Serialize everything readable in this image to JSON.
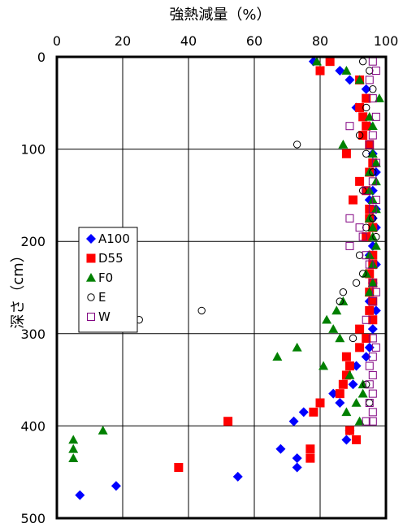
{
  "chart_data": {
    "type": "scatter",
    "title": "",
    "xlabel": "強熱減量（%）",
    "ylabel": "深さ（cm）",
    "xlim": [
      0,
      100
    ],
    "ylim": [
      0,
      500
    ],
    "y_inverted": true,
    "x_axis_position": "top",
    "grid": true,
    "legend_position": "left-middle",
    "x_ticks": [
      0,
      20,
      40,
      60,
      80,
      100
    ],
    "y_ticks": [
      0,
      100,
      200,
      300,
      400,
      500
    ],
    "series": [
      {
        "name": "A100",
        "marker": "diamond",
        "color": "#0000ff",
        "filled": true,
        "points": [
          [
            78,
            5
          ],
          [
            86,
            15
          ],
          [
            89,
            25
          ],
          [
            91,
            55
          ],
          [
            94,
            35
          ],
          [
            95,
            75
          ],
          [
            96,
            105
          ],
          [
            97,
            125
          ],
          [
            96,
            145
          ],
          [
            95,
            155
          ],
          [
            97,
            165
          ],
          [
            96,
            175
          ],
          [
            97,
            185
          ],
          [
            96,
            205
          ],
          [
            95,
            215
          ],
          [
            97,
            225
          ],
          [
            96,
            245
          ],
          [
            95,
            265
          ],
          [
            97,
            275
          ],
          [
            96,
            295
          ],
          [
            95,
            315
          ],
          [
            94,
            325
          ],
          [
            91,
            335
          ],
          [
            90,
            355
          ],
          [
            84,
            365
          ],
          [
            86,
            375
          ],
          [
            75,
            385
          ],
          [
            72,
            395
          ],
          [
            89,
            405
          ],
          [
            88,
            415
          ],
          [
            68,
            425
          ],
          [
            73,
            435
          ],
          [
            73,
            445
          ],
          [
            55,
            455
          ],
          [
            18,
            465
          ],
          [
            7,
            475
          ]
        ]
      },
      {
        "name": "D55",
        "marker": "square",
        "color": "#ff0000",
        "filled": true,
        "points": [
          [
            83,
            5
          ],
          [
            80,
            15
          ],
          [
            92,
            25
          ],
          [
            94,
            45
          ],
          [
            92,
            55
          ],
          [
            93,
            65
          ],
          [
            94,
            75
          ],
          [
            93,
            85
          ],
          [
            95,
            95
          ],
          [
            88,
            105
          ],
          [
            96,
            115
          ],
          [
            95,
            125
          ],
          [
            92,
            135
          ],
          [
            94,
            145
          ],
          [
            90,
            155
          ],
          [
            95,
            165
          ],
          [
            95,
            175
          ],
          [
            96,
            185
          ],
          [
            94,
            195
          ],
          [
            96,
            215
          ],
          [
            96,
            225
          ],
          [
            95,
            235
          ],
          [
            96,
            245
          ],
          [
            95,
            255
          ],
          [
            96,
            265
          ],
          [
            95,
            275
          ],
          [
            96,
            285
          ],
          [
            92,
            295
          ],
          [
            94,
            305
          ],
          [
            92,
            315
          ],
          [
            88,
            325
          ],
          [
            89,
            335
          ],
          [
            88,
            345
          ],
          [
            87,
            355
          ],
          [
            86,
            365
          ],
          [
            80,
            375
          ],
          [
            78,
            385
          ],
          [
            52,
            395
          ],
          [
            89,
            405
          ],
          [
            91,
            415
          ],
          [
            77,
            425
          ],
          [
            77,
            435
          ],
          [
            37,
            445
          ]
        ]
      },
      {
        "name": "F0",
        "marker": "triangle",
        "color": "#008000",
        "filled": true,
        "points": [
          [
            79,
            5
          ],
          [
            88,
            15
          ],
          [
            92,
            25
          ],
          [
            98,
            45
          ],
          [
            95,
            65
          ],
          [
            96,
            75
          ],
          [
            87,
            95
          ],
          [
            96,
            105
          ],
          [
            97,
            115
          ],
          [
            95,
            125
          ],
          [
            97,
            135
          ],
          [
            95,
            145
          ],
          [
            96,
            155
          ],
          [
            97,
            165
          ],
          [
            95,
            175
          ],
          [
            96,
            185
          ],
          [
            96,
            195
          ],
          [
            97,
            205
          ],
          [
            95,
            215
          ],
          [
            96,
            225
          ],
          [
            94,
            235
          ],
          [
            96,
            245
          ],
          [
            95,
            255
          ],
          [
            87,
            265
          ],
          [
            85,
            275
          ],
          [
            82,
            285
          ],
          [
            84,
            295
          ],
          [
            86,
            305
          ],
          [
            73,
            315
          ],
          [
            67,
            325
          ],
          [
            81,
            335
          ],
          [
            89,
            345
          ],
          [
            93,
            355
          ],
          [
            93,
            365
          ],
          [
            91,
            375
          ],
          [
            88,
            385
          ],
          [
            92,
            395
          ],
          [
            14,
            405
          ],
          [
            5,
            415
          ],
          [
            5,
            425
          ],
          [
            5,
            435
          ]
        ]
      },
      {
        "name": "E",
        "marker": "circle",
        "color": "#000000",
        "filled": false,
        "points": [
          [
            93,
            5
          ],
          [
            95,
            15
          ],
          [
            96,
            35
          ],
          [
            94,
            55
          ],
          [
            92,
            85
          ],
          [
            73,
            95
          ],
          [
            94,
            105
          ],
          [
            96,
            125
          ],
          [
            93,
            145
          ],
          [
            96,
            175
          ],
          [
            94,
            185
          ],
          [
            97,
            195
          ],
          [
            92,
            215
          ],
          [
            93,
            235
          ],
          [
            91,
            245
          ],
          [
            87,
            255
          ],
          [
            86,
            265
          ],
          [
            44,
            275
          ],
          [
            25,
            285
          ],
          [
            90,
            305
          ],
          [
            94,
            355
          ],
          [
            95,
            375
          ]
        ]
      },
      {
        "name": "W",
        "marker": "square",
        "color": "#800080",
        "filled": false,
        "points": [
          [
            96,
            5
          ],
          [
            97,
            15
          ],
          [
            95,
            25
          ],
          [
            96,
            45
          ],
          [
            97,
            65
          ],
          [
            89,
            75
          ],
          [
            96,
            85
          ],
          [
            95,
            95
          ],
          [
            97,
            115
          ],
          [
            96,
            135
          ],
          [
            94,
            145
          ],
          [
            97,
            155
          ],
          [
            96,
            165
          ],
          [
            89,
            175
          ],
          [
            92,
            185
          ],
          [
            93,
            195
          ],
          [
            89,
            205
          ],
          [
            94,
            215
          ],
          [
            95,
            225
          ],
          [
            96,
            245
          ],
          [
            97,
            255
          ],
          [
            96,
            265
          ],
          [
            94,
            285
          ],
          [
            96,
            305
          ],
          [
            97,
            315
          ],
          [
            96,
            325
          ],
          [
            95,
            335
          ],
          [
            96,
            345
          ],
          [
            95,
            355
          ],
          [
            96,
            365
          ],
          [
            95,
            375
          ],
          [
            96,
            385
          ],
          [
            94,
            395
          ],
          [
            96,
            395
          ]
        ]
      }
    ]
  }
}
